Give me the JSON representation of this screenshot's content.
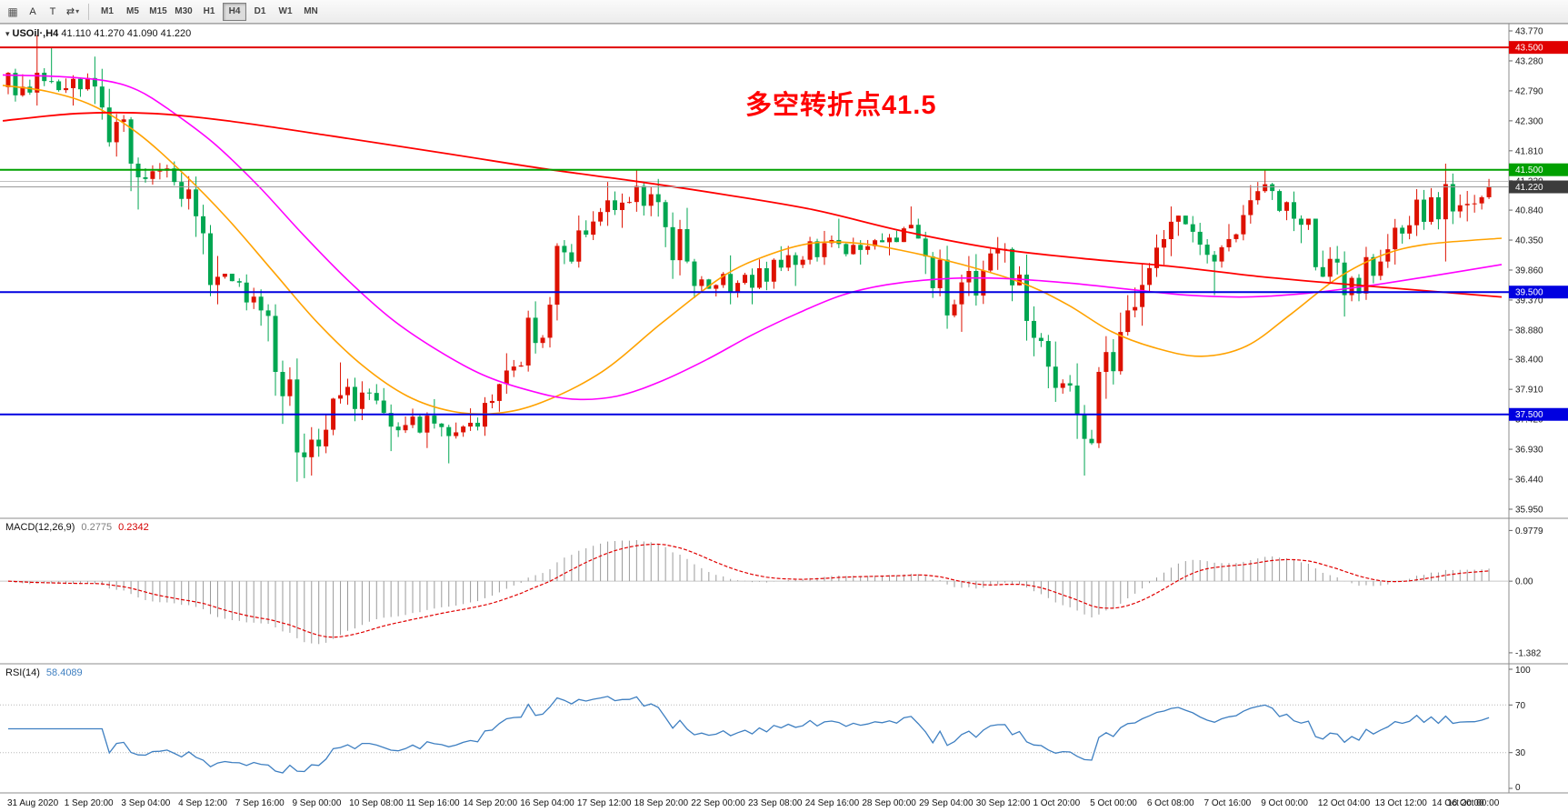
{
  "toolbar": {
    "tool_a": "A",
    "tool_t": "T",
    "timeframes": [
      "M1",
      "M5",
      "M15",
      "M30",
      "H1",
      "H4",
      "D1",
      "W1",
      "MN"
    ],
    "active_timeframe": "H4"
  },
  "chart_header": {
    "symbol": "USOil·,H4",
    "ohlc": "41.110 41.270 41.090 41.220"
  },
  "annotation": {
    "text": "多空转折点41.5",
    "color": "#ff0000"
  },
  "indicators": {
    "macd": {
      "label": "MACD(12,26,9)",
      "value_main": "0.2775",
      "value_signal": "0.2342"
    },
    "rsi": {
      "label": "RSI(14)",
      "value": "58.4089"
    }
  },
  "chart_data": {
    "type": "candlestick+indicators",
    "symbol": "USOil",
    "timeframe": "H4",
    "current_price": 41.22,
    "price_axis": {
      "min": 35.95,
      "max": 43.77,
      "tick_step": 0.49,
      "ticks": [
        "43.770",
        "43.280",
        "42.790",
        "42.300",
        "41.810",
        "41.320",
        "40.840",
        "40.350",
        "39.860",
        "39.370",
        "38.880",
        "38.400",
        "37.910",
        "37.420",
        "36.930",
        "36.440",
        "35.950"
      ]
    },
    "hlines": [
      {
        "price": 43.5,
        "color": "#e00000",
        "label": "43.500",
        "width": 2
      },
      {
        "price": 41.5,
        "color": "#00a000",
        "label": "41.500",
        "width": 2
      },
      {
        "price": 41.31,
        "color": "#c0c0c0",
        "label": "",
        "width": 1
      },
      {
        "price": 41.22,
        "color": "#9a9a9a",
        "label": "41.220",
        "width": 1,
        "tag_bg": "#3c3c3c"
      },
      {
        "price": 39.5,
        "color": "#0000e0",
        "label": "39.500",
        "width": 2
      },
      {
        "price": 37.5,
        "color": "#0000e0",
        "label": "37.500",
        "width": 2
      }
    ],
    "first_open": 42.85,
    "days": [
      [
        "31 Aug",
        42.95,
        43.7,
        42.55
      ],
      [
        "1 Sep",
        43.0,
        43.5,
        42.55
      ],
      [
        "2 Sep",
        41.6,
        43.35,
        41.15
      ],
      [
        "3 Sep",
        41.3,
        41.7,
        40.85
      ],
      [
        "4 Sep",
        39.75,
        41.45,
        39.3
      ],
      [
        "7 Sep",
        39.2,
        39.8,
        38.95
      ],
      [
        "8 Sep",
        36.8,
        39.3,
        36.4
      ],
      [
        "9 Sep",
        37.95,
        38.35,
        36.5
      ],
      [
        "10 Sep",
        37.3,
        38.1,
        36.9
      ],
      [
        "11 Sep",
        37.35,
        37.75,
        36.95
      ],
      [
        "14 Sep",
        37.3,
        37.6,
        36.7
      ],
      [
        "15 Sep",
        38.3,
        38.5,
        37.15
      ],
      [
        "16 Sep",
        40.15,
        40.35,
        38.2
      ],
      [
        "17 Sep",
        41.0,
        41.3,
        39.9
      ],
      [
        "18 Sep",
        41.1,
        41.5,
        40.55
      ],
      [
        "21 Sep",
        39.6,
        41.35,
        39.4
      ],
      [
        "22 Sep",
        39.65,
        40.1,
        39.3
      ],
      [
        "23 Sep",
        39.9,
        40.25,
        39.3
      ],
      [
        "24 Sep",
        40.3,
        40.5,
        39.6
      ],
      [
        "25 Sep",
        40.25,
        40.7,
        39.95
      ],
      [
        "28 Sep",
        40.6,
        40.9,
        40.1
      ],
      [
        "29 Sep",
        39.3,
        40.7,
        38.9
      ],
      [
        "30 Sep",
        40.2,
        40.4,
        38.85
      ],
      [
        "1 Oct",
        38.7,
        40.3,
        38.45
      ],
      [
        "2 Oct",
        37.1,
        38.8,
        36.5
      ],
      [
        "5 Oct",
        39.2,
        39.45,
        36.95
      ],
      [
        "6 Oct",
        40.65,
        40.9,
        38.95
      ],
      [
        "7 Oct",
        40.0,
        40.75,
        39.45
      ],
      [
        "8 Oct",
        41.15,
        41.3,
        39.9
      ],
      [
        "9 Oct",
        40.6,
        41.5,
        40.3
      ],
      [
        "12 Oct",
        39.45,
        40.7,
        39.1
      ],
      [
        "13 Oct",
        40.2,
        40.45,
        39.35
      ],
      [
        "14 Oct",
        41.05,
        41.2,
        39.95
      ],
      [
        "15 Oct",
        40.95,
        41.6,
        40.0
      ],
      [
        "16 Oct",
        41.22,
        41.35,
        40.85,
        2
      ]
    ],
    "ma_slow_red": [
      [
        0,
        42.3
      ],
      [
        0.05,
        42.42
      ],
      [
        0.1,
        42.42
      ],
      [
        0.15,
        42.3
      ],
      [
        0.22,
        42.05
      ],
      [
        0.3,
        41.75
      ],
      [
        0.36,
        41.52
      ],
      [
        0.42,
        41.32
      ],
      [
        0.48,
        41.1
      ],
      [
        0.54,
        40.85
      ],
      [
        0.6,
        40.5
      ],
      [
        0.66,
        40.22
      ],
      [
        0.72,
        40.05
      ],
      [
        0.78,
        39.92
      ],
      [
        0.84,
        39.75
      ],
      [
        0.9,
        39.62
      ],
      [
        0.95,
        39.52
      ],
      [
        1,
        39.42
      ]
    ],
    "ma_fast_orange": [
      [
        0,
        42.88
      ],
      [
        0.03,
        42.78
      ],
      [
        0.06,
        42.55
      ],
      [
        0.09,
        42.1
      ],
      [
        0.12,
        41.45
      ],
      [
        0.15,
        40.7
      ],
      [
        0.18,
        39.85
      ],
      [
        0.21,
        39.0
      ],
      [
        0.24,
        38.3
      ],
      [
        0.27,
        37.8
      ],
      [
        0.3,
        37.55
      ],
      [
        0.33,
        37.52
      ],
      [
        0.36,
        37.7
      ],
      [
        0.4,
        38.2
      ],
      [
        0.44,
        39.0
      ],
      [
        0.48,
        39.75
      ],
      [
        0.51,
        40.1
      ],
      [
        0.54,
        40.3
      ],
      [
        0.57,
        40.3
      ],
      [
        0.6,
        40.18
      ],
      [
        0.64,
        39.95
      ],
      [
        0.68,
        39.65
      ],
      [
        0.71,
        39.3
      ],
      [
        0.74,
        38.85
      ],
      [
        0.77,
        38.58
      ],
      [
        0.8,
        38.45
      ],
      [
        0.83,
        38.62
      ],
      [
        0.86,
        39.15
      ],
      [
        0.89,
        39.72
      ],
      [
        0.92,
        40.1
      ],
      [
        0.95,
        40.28
      ],
      [
        1,
        40.38
      ]
    ],
    "ma_mid_magenta": [
      [
        0,
        43.05
      ],
      [
        0.04,
        43.02
      ],
      [
        0.07,
        42.95
      ],
      [
        0.09,
        42.8
      ],
      [
        0.11,
        42.5
      ],
      [
        0.14,
        41.95
      ],
      [
        0.17,
        41.25
      ],
      [
        0.2,
        40.45
      ],
      [
        0.23,
        39.7
      ],
      [
        0.26,
        39.05
      ],
      [
        0.29,
        38.55
      ],
      [
        0.32,
        38.15
      ],
      [
        0.35,
        37.9
      ],
      [
        0.38,
        37.75
      ],
      [
        0.41,
        37.8
      ],
      [
        0.44,
        38.05
      ],
      [
        0.47,
        38.4
      ],
      [
        0.5,
        38.8
      ],
      [
        0.53,
        39.15
      ],
      [
        0.56,
        39.45
      ],
      [
        0.59,
        39.62
      ],
      [
        0.63,
        39.72
      ],
      [
        0.67,
        39.72
      ],
      [
        0.71,
        39.65
      ],
      [
        0.75,
        39.55
      ],
      [
        0.79,
        39.45
      ],
      [
        0.83,
        39.42
      ],
      [
        0.87,
        39.48
      ],
      [
        0.91,
        39.6
      ],
      [
        0.95,
        39.75
      ],
      [
        1,
        39.95
      ]
    ],
    "macd_panel": {
      "axis_labels": [
        "0.9779",
        "0.00",
        "-1.382"
      ],
      "axis_values": [
        0.9779,
        0,
        -1.382
      ],
      "range": [
        -1.45,
        1.02
      ]
    },
    "rsi_panel": {
      "axis_labels": [
        "100",
        "70",
        "30",
        "0"
      ],
      "axis_values": [
        100,
        70,
        30,
        0
      ],
      "levels": [
        70,
        30
      ],
      "last_value": 58.4089
    },
    "time_labels": [
      "31 Aug 2020",
      "1 Sep 20:00",
      "3 Sep 04:00",
      "4 Sep 12:00",
      "7 Sep 16:00",
      "9 Sep 00:00",
      "10 Sep 08:00",
      "11 Sep 16:00",
      "14 Sep 20:00",
      "16 Sep 04:00",
      "17 Sep 12:00",
      "18 Sep 20:00",
      "22 Sep 00:00",
      "23 Sep 08:00",
      "24 Sep 16:00",
      "28 Sep 00:00",
      "29 Sep 04:00",
      "30 Sep 12:00",
      "1 Oct 20:00",
      "5 Oct 00:00",
      "6 Oct 08:00",
      "7 Oct 16:00",
      "9 Oct 00:00",
      "12 Oct 04:00",
      "13 Oct 12:00",
      "14 Oct 20:00",
      "16 Oct 00:00"
    ],
    "colors": {
      "bull": "#dd1100",
      "bear": "#00a651",
      "ma_fast": "#ffa200",
      "ma_mid": "#ff00ff",
      "ma_slow": "#ff0000",
      "macd_hist": "#9a9a9a",
      "macd_signal": "#e00000",
      "rsi_line": "#3e7fc1"
    }
  }
}
